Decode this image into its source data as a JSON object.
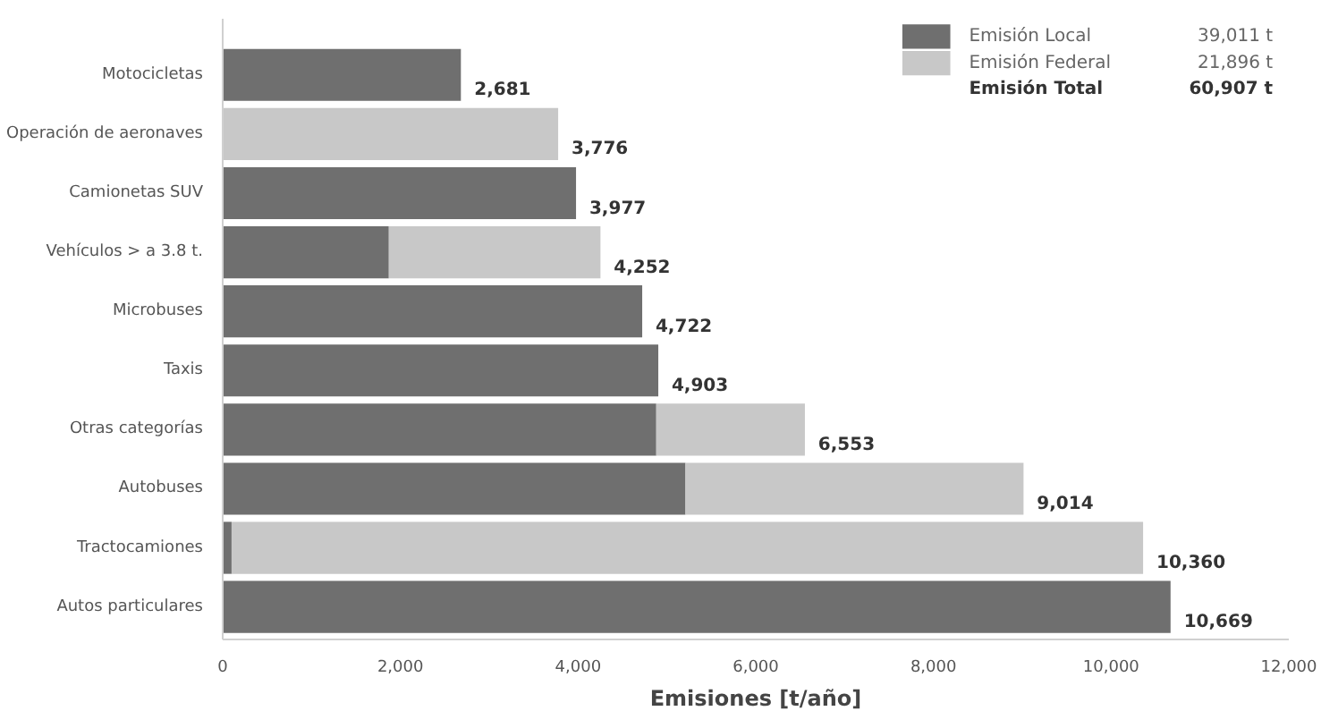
{
  "chart_data": {
    "type": "bar",
    "orientation": "horizontal",
    "stacked": true,
    "categories": [
      "Motocicletas",
      "Operación de aeronaves",
      "Camionetas SUV",
      "Vehículos > a 3.8 t.",
      "Microbuses",
      "Taxis",
      "Otras categorías",
      "Autobuses",
      "Tractocamiones",
      "Autos particulares"
    ],
    "series": [
      {
        "name": "Emisión Local",
        "color": "#6f6f6f",
        "values": [
          2681,
          0,
          3977,
          1870,
          4722,
          4903,
          4880,
          5209,
          100,
          10669
        ]
      },
      {
        "name": "Emisión Federal",
        "color": "#c8c8c8",
        "values": [
          0,
          3776,
          0,
          2382,
          0,
          0,
          1673,
          3805,
          10260,
          0
        ]
      }
    ],
    "totals": [
      "2,681",
      "3,776",
      "3,977",
      "4,252",
      "4,722",
      "4,903",
      "6,553",
      "9,014",
      "10,360",
      "10,669"
    ],
    "xlabel": "Emisiones [t/año]",
    "xlim": [
      0,
      12000
    ],
    "xticks": [
      {
        "value": 0,
        "label": "0"
      },
      {
        "value": 2000,
        "label": "2,000"
      },
      {
        "value": 4000,
        "label": "4,000"
      },
      {
        "value": 6000,
        "label": "6,000"
      },
      {
        "value": 8000,
        "label": "8,000"
      },
      {
        "value": 10000,
        "label": "10,000"
      },
      {
        "value": 12000,
        "label": "12,000"
      }
    ],
    "legend": "top right",
    "grid": false,
    "annotations": [
      "39,011 t",
      "21,896 t",
      "Emisión Total",
      "60,907 t"
    ]
  }
}
